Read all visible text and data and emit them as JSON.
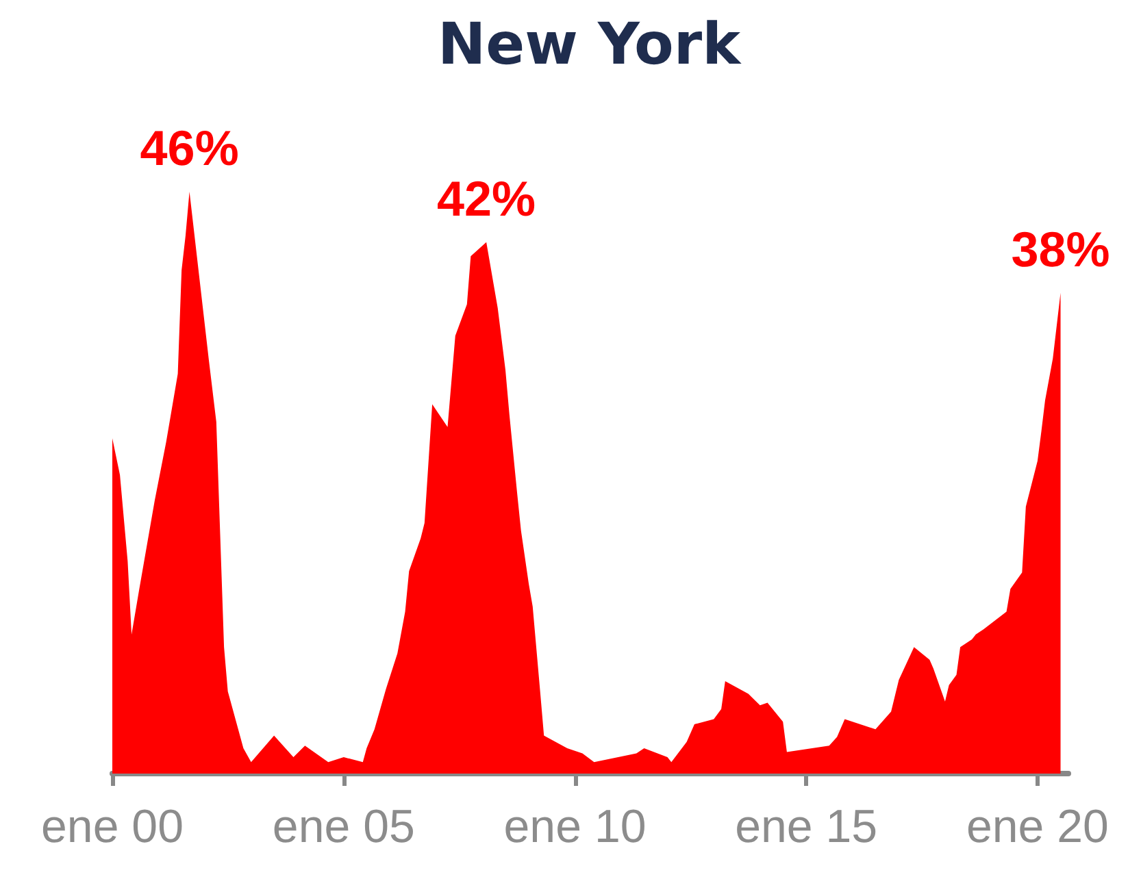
{
  "chart_data": {
    "type": "area",
    "title": "New York",
    "color": "#ff0000",
    "x": [
      "2000-01",
      "2000-03",
      "2000-05",
      "2000-06",
      "2000-08",
      "2000-12",
      "2001-03",
      "2001-06",
      "2001-07",
      "2001-08",
      "2001-09",
      "2002-02",
      "2002-04",
      "2002-06",
      "2002-07",
      "2002-11",
      "2003-01",
      "2003-07",
      "2003-12",
      "2004-03",
      "2004-09",
      "2005-01",
      "2005-06",
      "2005-07",
      "2005-09",
      "2005-12",
      "2006-03",
      "2006-05",
      "2006-06",
      "2006-09",
      "2006-10",
      "2006-12",
      "2007-04",
      "2007-06",
      "2007-09",
      "2007-10",
      "2008-02",
      "2008-05",
      "2008-07",
      "2008-08",
      "2008-10",
      "2008-11",
      "2009-01",
      "2009-02",
      "2009-04",
      "2009-05",
      "2009-11",
      "2010-03",
      "2010-06",
      "2011-05",
      "2011-07",
      "2012-01",
      "2012-02",
      "2012-06",
      "2012-08",
      "2013-01",
      "2013-03",
      "2013-04",
      "2013-10",
      "2014-01",
      "2014-03",
      "2014-07",
      "2014-08",
      "2015-07",
      "2015-09",
      "2015-11",
      "2016-07",
      "2016-11",
      "2017-01",
      "2017-05",
      "2017-09",
      "2017-10",
      "2018-01",
      "2018-02",
      "2018-04",
      "2018-05",
      "2018-08",
      "2018-09",
      "2018-11",
      "2019-05",
      "2019-06",
      "2019-09",
      "2019-10",
      "2020-01",
      "2020-02",
      "2020-03",
      "2020-05",
      "2020-07"
    ],
    "values": [
      26.5,
      23.6,
      16.8,
      11,
      14.6,
      21.6,
      26.2,
      31.6,
      39.8,
      42.5,
      46,
      32.7,
      27.8,
      10,
      6.5,
      2,
      0.9,
      3,
      1.3,
      2.2,
      0.9,
      1.3,
      0.9,
      2,
      3.5,
      6.7,
      9.5,
      12.8,
      16,
      18.6,
      19.8,
      29.2,
      27.4,
      34.6,
      37.1,
      40.9,
      42,
      36.8,
      31.9,
      28.4,
      22.2,
      19.2,
      15,
      13.2,
      6.5,
      3,
      2,
      1.6,
      0.9,
      1.6,
      2,
      1.3,
      0.9,
      2.5,
      3.9,
      4.3,
      5.1,
      7.3,
      6.3,
      5.4,
      5.6,
      4.1,
      1.7,
      2.2,
      2.9,
      4.3,
      3.5,
      4.9,
      7.4,
      10,
      9,
      8.3,
      5.7,
      7,
      7.8,
      10,
      10.6,
      11,
      11.4,
      12.8,
      14.6,
      15.9,
      21.1,
      24.7,
      27.1,
      29.5,
      32.8,
      38
    ],
    "value_labels": [
      null,
      null,
      null,
      null,
      null,
      null,
      null,
      null,
      null,
      null,
      "46%",
      null,
      null,
      null,
      null,
      null,
      null,
      null,
      null,
      null,
      null,
      null,
      null,
      null,
      null,
      null,
      null,
      null,
      null,
      null,
      null,
      null,
      null,
      null,
      null,
      null,
      "42%",
      null,
      null,
      null,
      null,
      null,
      null,
      null,
      null,
      null,
      null,
      null,
      null,
      null,
      null,
      null,
      null,
      null,
      null,
      null,
      null,
      null,
      null,
      null,
      null,
      null,
      null,
      null,
      null,
      null,
      null,
      null,
      null,
      null,
      null,
      null,
      null,
      null,
      null,
      null,
      null,
      null,
      null,
      null,
      null,
      null,
      null,
      null,
      null,
      null,
      null,
      "38%"
    ],
    "xlim": [
      "2000-01",
      "2020-09"
    ],
    "xticks": [
      {
        "value": "2000-01",
        "label": "ene 00"
      },
      {
        "value": "2005-01",
        "label": "ene 05"
      },
      {
        "value": "2010-01",
        "label": "ene 10"
      },
      {
        "value": "2015-01",
        "label": "ene 15"
      },
      {
        "value": "2020-01",
        "label": "ene 20"
      }
    ]
  }
}
